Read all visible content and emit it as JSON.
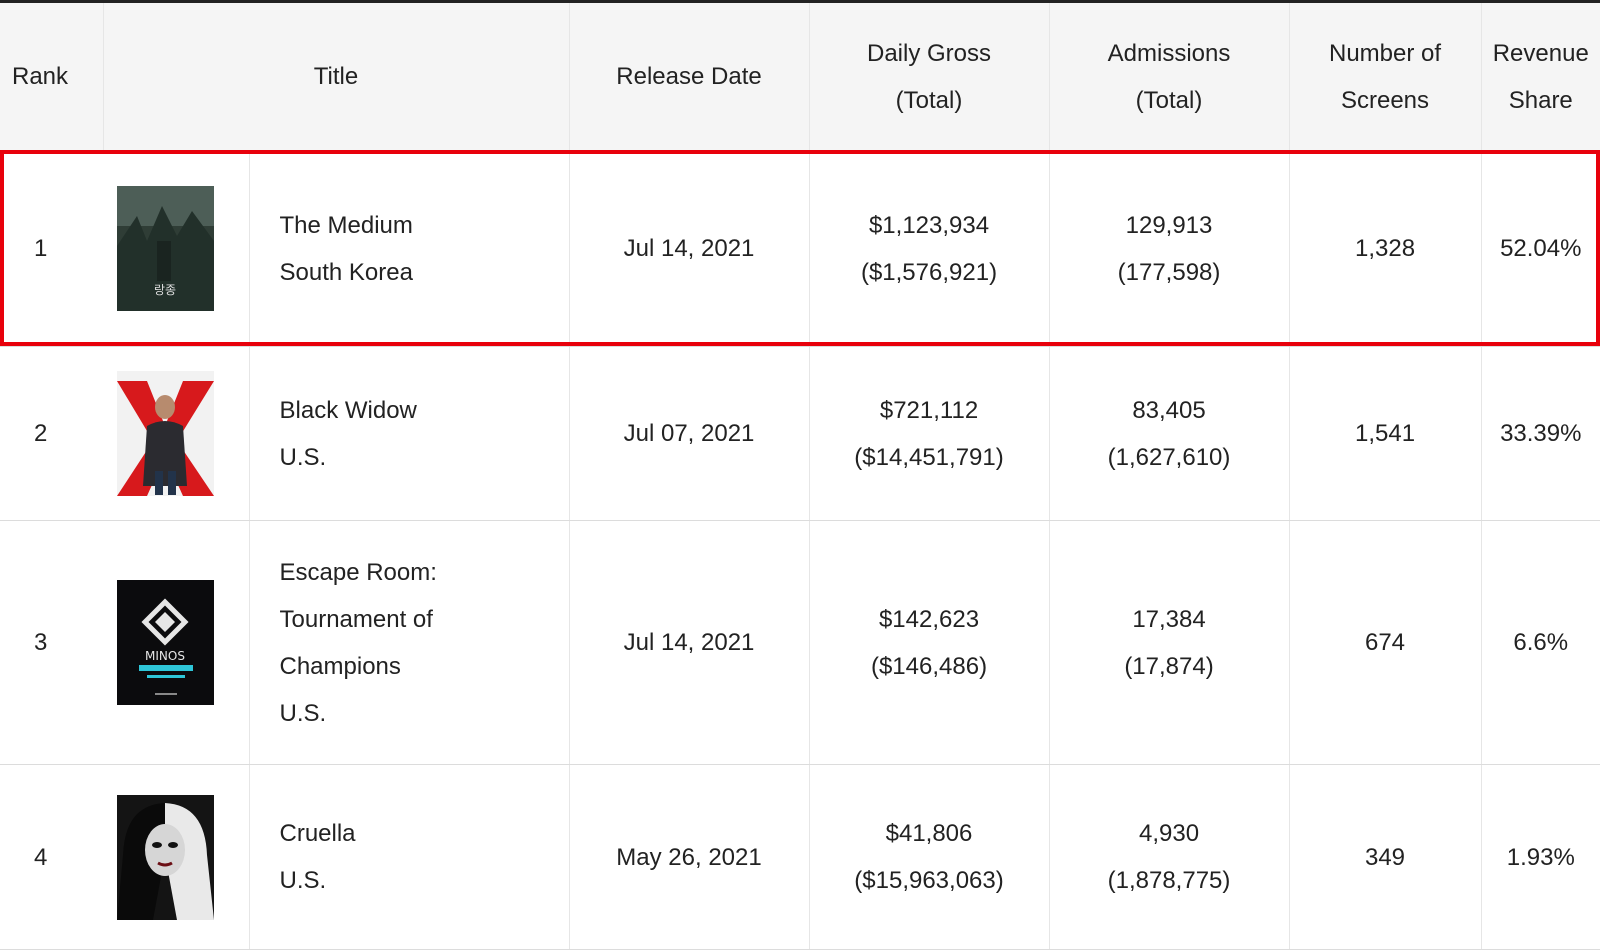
{
  "columns": {
    "rank": "Rank",
    "title": "Title",
    "release_date": "Release Date",
    "daily_gross_1": "Daily Gross",
    "daily_gross_2": "(Total)",
    "admissions_1": "Admissions",
    "admissions_2": "(Total)",
    "screens_1": "Number of",
    "screens_2": "Screens",
    "share_1": "Revenue",
    "share_2": "Share"
  },
  "rows": [
    {
      "rank": "1",
      "poster_icon": "the-medium-poster",
      "title_lines": [
        "The Medium",
        "South Korea"
      ],
      "poster_text": "랑종",
      "release_date": "Jul 14, 2021",
      "gross": "$1,123,934",
      "gross_total": "($1,576,921)",
      "admissions": "129,913",
      "admissions_total": "(177,598)",
      "screens": "1,328",
      "share": "52.04%"
    },
    {
      "rank": "2",
      "poster_icon": "black-widow-poster",
      "title_lines": [
        "Black Widow",
        "U.S."
      ],
      "release_date": "Jul 07, 2021",
      "gross": "$721,112",
      "gross_total": "($14,451,791)",
      "admissions": "83,405",
      "admissions_total": "(1,627,610)",
      "screens": "1,541",
      "share": "33.39%"
    },
    {
      "rank": "3",
      "poster_icon": "escape-room-poster",
      "title_lines": [
        "Escape Room:",
        "Tournament of",
        "Champions",
        "U.S."
      ],
      "poster_text": "MINOS",
      "release_date": "Jul 14, 2021",
      "gross": "$142,623",
      "gross_total": "($146,486)",
      "admissions": "17,384",
      "admissions_total": "(17,874)",
      "screens": "674",
      "share": "6.6%"
    },
    {
      "rank": "4",
      "poster_icon": "cruella-poster",
      "title_lines": [
        "Cruella",
        "U.S."
      ],
      "release_date": "May 26, 2021",
      "gross": "$41,806",
      "gross_total": "($15,963,063)",
      "admissions": "4,930",
      "admissions_total": "(1,878,775)",
      "screens": "349",
      "share": "1.93%"
    }
  ],
  "colors": {
    "highlight": "#e8000b",
    "header_bg": "#f5f5f5"
  }
}
